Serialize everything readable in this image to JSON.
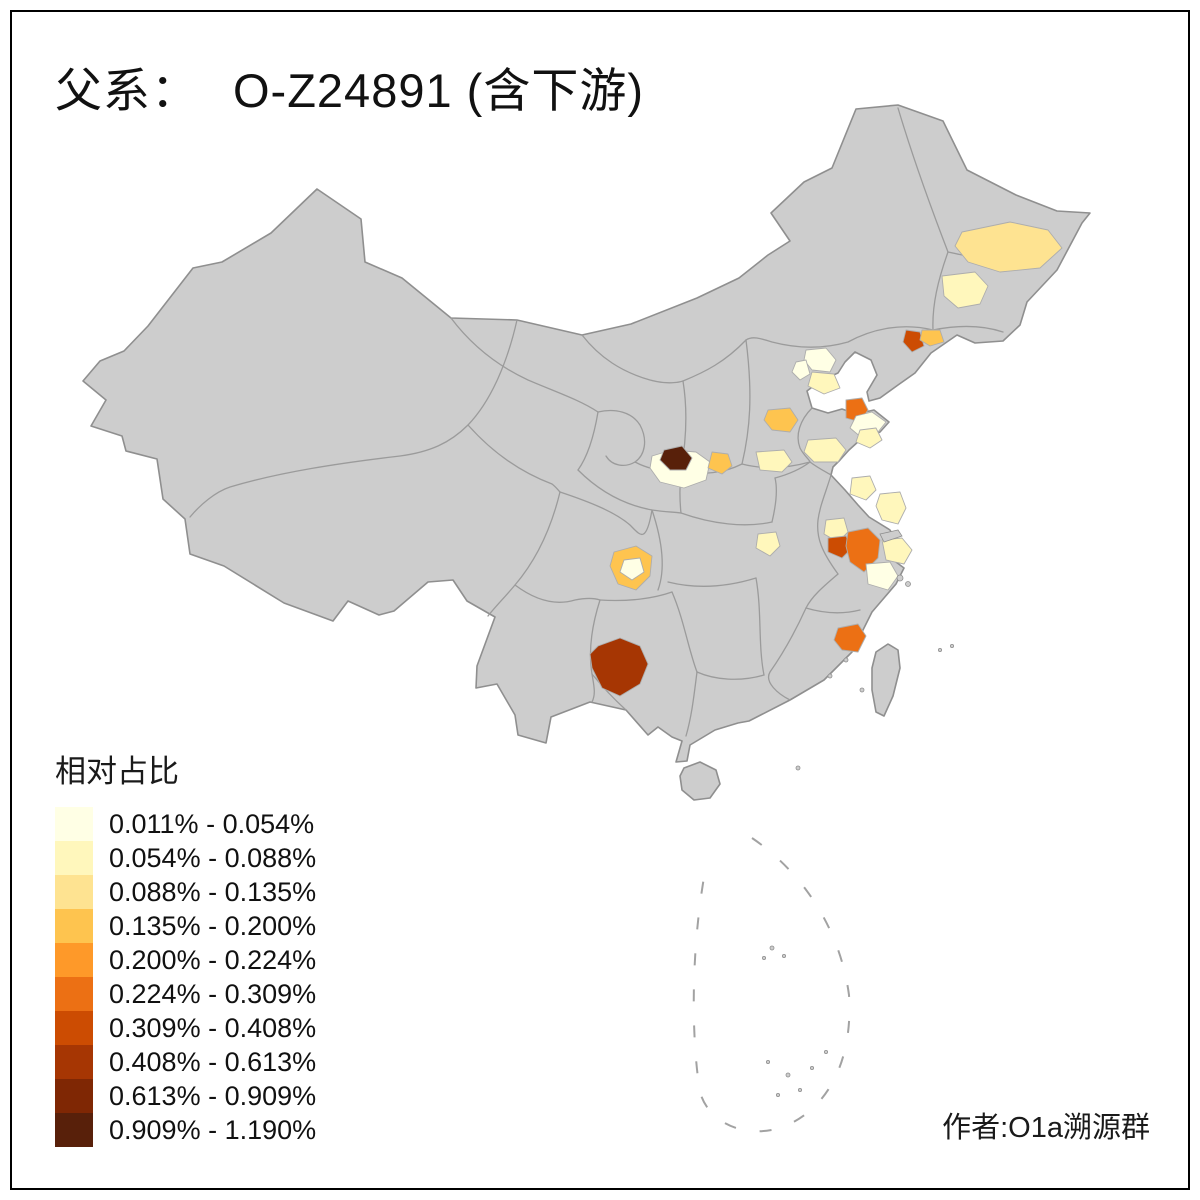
{
  "title": {
    "prefix": "父系：",
    "main": "O-Z24891 (含下游)"
  },
  "author": "作者:O1a溯源群",
  "map": {
    "base_region_color": "#CDCDCD",
    "boundary_color": "#8F8F8F",
    "background": "#FFFFFF"
  },
  "chart_data": {
    "type": "choropleth_map",
    "title": "父系： O-Z24891 (含下游)",
    "legend_title": "相对占比",
    "class_labels": [
      "0.011% - 0.054%",
      "0.054% - 0.088%",
      "0.088% - 0.135%",
      "0.135% - 0.200%",
      "0.200% - 0.224%",
      "0.224% - 0.309%",
      "0.309% - 0.408%",
      "0.408% - 0.613%",
      "0.613% - 0.909%",
      "0.909% - 1.190%"
    ],
    "palette": [
      "#FFFFE5",
      "#FFF7BC",
      "#FEE391",
      "#FEC44F",
      "#FE9929",
      "#EC7014",
      "#CC4C02",
      "#A63603",
      "#7F2704",
      "#58200A"
    ],
    "base_region_color": "#CDCDCD",
    "regions": [
      {
        "id": "r1",
        "class_index": 2
      },
      {
        "id": "r2",
        "class_index": 1
      },
      {
        "id": "r3",
        "class_index": 6
      },
      {
        "id": "r4",
        "class_index": 3
      },
      {
        "id": "r5",
        "class_index": 0
      },
      {
        "id": "r6",
        "class_index": 1
      },
      {
        "id": "r7",
        "class_index": 0
      },
      {
        "id": "r8",
        "class_index": 5
      },
      {
        "id": "r9",
        "class_index": 3
      },
      {
        "id": "r10",
        "class_index": 0
      },
      {
        "id": "r11",
        "class_index": 1
      },
      {
        "id": "r12",
        "class_index": 1
      },
      {
        "id": "r13",
        "class_index": 0
      },
      {
        "id": "r14",
        "class_index": 9
      },
      {
        "id": "r15",
        "class_index": 3
      },
      {
        "id": "r16",
        "class_index": 1
      },
      {
        "id": "r17",
        "class_index": 1
      },
      {
        "id": "r18",
        "class_index": 1
      },
      {
        "id": "r19",
        "class_index": 1
      },
      {
        "id": "r20",
        "class_index": 1
      },
      {
        "id": "r21",
        "class_index": 6
      },
      {
        "id": "r22",
        "class_index": 5
      },
      {
        "id": "r23",
        "class_index": 1
      },
      {
        "id": "r24",
        "class_index": 0
      },
      {
        "id": "r25",
        "class_index": 3
      },
      {
        "id": "r26",
        "class_index": 0
      },
      {
        "id": "r27",
        "class_index": 7
      },
      {
        "id": "r28",
        "class_index": 5
      }
    ]
  }
}
